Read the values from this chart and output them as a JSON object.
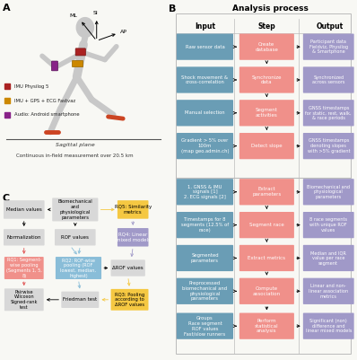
{
  "bg_color": "#f8f8f4",
  "panel_labels": [
    "A",
    "B",
    "C"
  ],
  "colors": {
    "teal_input": "#6a9db5",
    "salmon_step": "#f0908a",
    "purple_output": "#a099c8",
    "yellow_rq": "#f5c842",
    "blue_rq": "#89bdd8",
    "red_rq1": "#f0908a",
    "gray_box": "#d8d8d8",
    "white": "#ffffff",
    "black": "#000000",
    "figure_gray": "#c8c8c8",
    "border_color": "#aaaaaa",
    "orange_rq3": "#f5c842"
  },
  "panel_B_header": "Analysis process",
  "panel_B_col_headers": [
    "Input",
    "Step",
    "Output"
  ],
  "panel_B_inputs": [
    "Raw sensor data",
    "Shock movement &\ncross-correlation",
    "Manual selection",
    "Gradient > 5% over\n100m\n(map geo.admin.ch)",
    "1. GNSS & IMU\nsignals [1]\n2. ECG signals [2]",
    "Timestamps for 8\nsegments (12.5% of\nrace)",
    "Segmented\nparameters",
    "Preprocessed\nbiomechanical and\nphysiological\nparameters",
    "Groups\nRace segment\nROF values\nFast/slow runners"
  ],
  "panel_B_steps": [
    "Create\ndatabase",
    "Synchronize\ndata",
    "Segment\nactivities",
    "Detect slope",
    "Extract\nparameters",
    "Segment race",
    "Extract metrics",
    "Compute\nassociation",
    "Perform\nstatistical\nanalysis"
  ],
  "panel_B_outputs": [
    "Participant data\nFieldviz, Physilog\n& Smartphone",
    "Synchronized\nacross sensors",
    "GNSS timestamps\nfor static, rest, walk,\n& race periods",
    "GNSS timestamps\ndenoting slopes\nwith >5% gradient",
    "Biomechanical and\nphysiological\nparameters",
    "8 race segments\nwith unique ROF\nvalues",
    "Median and IQR\nvalue per race\nsegment",
    "Linear and non-\nlinear association\nmetrics",
    "Significant (non)\ndifference and\nlinear mixed models"
  ],
  "legend_items": [
    {
      "label": "IMU Physilog 5",
      "color": "#aa2222",
      "marker": "s"
    },
    {
      "label": "IMU + GPS + ECG Fastvaz",
      "color": "#cc8800",
      "marker": "s"
    },
    {
      "label": "Audio: Android smartphone",
      "color": "#882288",
      "marker": "s"
    }
  ],
  "sagittal_label": "Sagittal plane",
  "measurement_label": "Continuous in-field measurement over 20.5 km",
  "axis_labels": [
    "SI",
    "AP",
    "ML"
  ],
  "panelC_boxes": {
    "median_values": "Median values",
    "bio_params": "Biomechanical\nand\nphysiological\nparameters",
    "rq5": "RQ5: Similarity\nmetrics",
    "normalization": "Normalization",
    "rof_values": "ROF values",
    "rq4": "RQ4: Linear\nmixed models",
    "rq1": "RQ1: Segment-\nwise pooling\n(Segments 1, 5,\n8)",
    "rq2": "RQ2: ROF-wise\npooling (ROF\nlowest, median,\nhighest)",
    "delta_rof": "ΔROF values",
    "pairwise": "Pairwise\nWilcoxon\nSigned-rank\ntest",
    "friedman": "Friedman test",
    "rq3": "RQ3: Pooling\naccording to\nΔROF values"
  }
}
